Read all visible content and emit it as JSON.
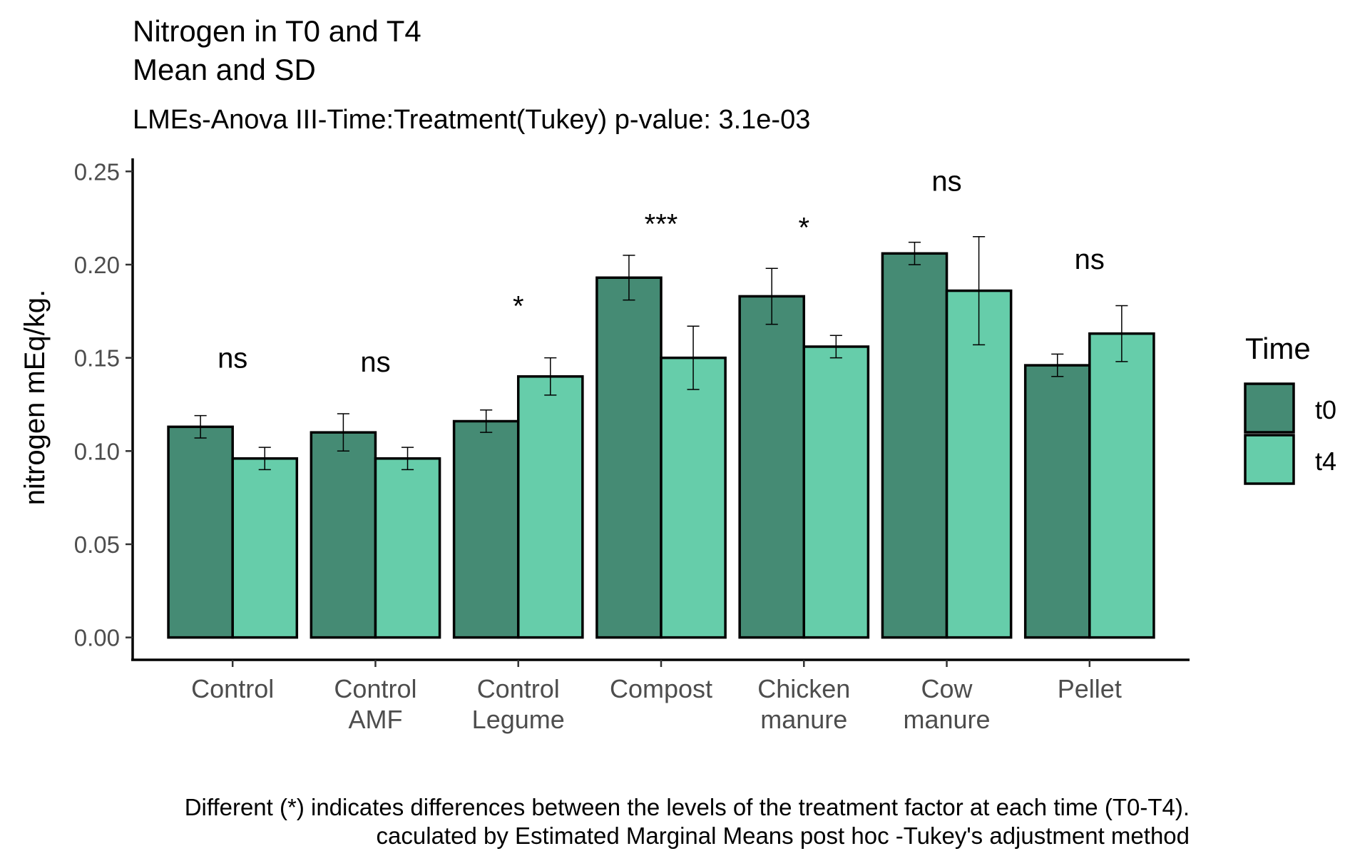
{
  "chart_data": {
    "type": "bar",
    "title_lines": [
      "Nitrogen in T0 and T4",
      "Mean and SD"
    ],
    "subtitle": "LMEs-Anova III-Time:Treatment(Tukey) p-value: 3.1e-03",
    "xlabel": "",
    "ylabel": "nitrogen mEq/kg.",
    "ylim": [
      -0.012,
      0.257
    ],
    "yticks": [
      0.0,
      0.05,
      0.1,
      0.15,
      0.2,
      0.25
    ],
    "ytick_labels": [
      "0.00",
      "0.05",
      "0.10",
      "0.15",
      "0.20",
      "0.25"
    ],
    "categories": [
      [
        "Control"
      ],
      [
        "Control",
        "AMF"
      ],
      [
        "Control",
        "Legume"
      ],
      [
        "Compost"
      ],
      [
        "Chicken",
        "manure"
      ],
      [
        "Cow",
        "manure"
      ],
      [
        "Pellet"
      ]
    ],
    "series": [
      {
        "name": "t0",
        "color": "#458B74",
        "values": [
          0.113,
          0.11,
          0.116,
          0.193,
          0.183,
          0.206,
          0.146
        ],
        "sd": [
          0.006,
          0.01,
          0.006,
          0.012,
          0.015,
          0.006,
          0.006
        ]
      },
      {
        "name": "t4",
        "color": "#66CDAA",
        "values": [
          0.096,
          0.096,
          0.14,
          0.15,
          0.156,
          0.186,
          0.163
        ],
        "sd": [
          0.006,
          0.006,
          0.01,
          0.017,
          0.006,
          0.029,
          0.015
        ]
      }
    ],
    "significance": [
      {
        "label": "ns",
        "y": 0.15
      },
      {
        "label": "ns",
        "y": 0.148
      },
      {
        "label": "*",
        "y": 0.178
      },
      {
        "label": "***",
        "y": 0.222
      },
      {
        "label": "*",
        "y": 0.22
      },
      {
        "label": "ns",
        "y": 0.245
      },
      {
        "label": "ns",
        "y": 0.203
      }
    ],
    "legend": {
      "title": "Time",
      "position": "right"
    },
    "grid": false,
    "caption_lines": [
      "Different (*) indicates differences between the levels of the treatment factor at each time (T0-T4).",
      "caculated by Estimated Marginal Means post hoc -Tukey's adjustment method"
    ]
  }
}
